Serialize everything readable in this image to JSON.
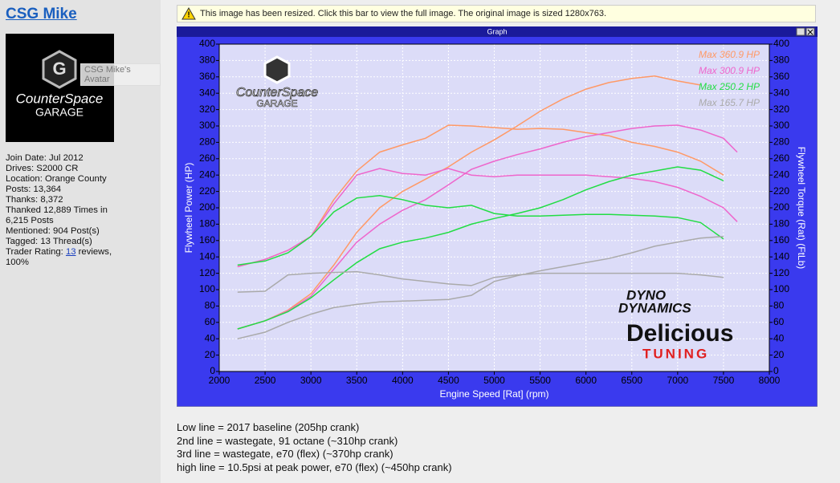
{
  "sidebar": {
    "username": "CSG Mike",
    "avatar_tooltip": "CSG Mike's Avatar",
    "avatar_logo": [
      "CounterSpace",
      "GARAGE"
    ],
    "info": [
      "Join Date: Jul 2012",
      "Drives: S2000 CR",
      "Location: Orange County",
      "Posts: 13,364",
      "Thanks: 8,372",
      "Thanked 12,889 Times in 6,215 Posts",
      "Mentioned: 904 Post(s)",
      "Tagged: 13 Thread(s)"
    ],
    "trader": {
      "label": "Trader Rating:",
      "link": "13",
      "suffix": "reviews, 100%"
    }
  },
  "notice": "This image has been resized. Click this bar to view the full image. The original image is sized 1280x763.",
  "window_title": "Graph",
  "chart_data": {
    "type": "line",
    "xlabel": "Engine Speed [Rat] (rpm)",
    "ylabel": "Flywheel Power (HP)",
    "y2label": "Flywheel Torque (Rat) (FtLb)",
    "x": [
      2200,
      2500,
      2750,
      3000,
      3250,
      3500,
      3750,
      4000,
      4250,
      4500,
      4750,
      5000,
      5250,
      5500,
      5750,
      6000,
      6250,
      6500,
      6750,
      7000,
      7250,
      7500,
      7650
    ],
    "xlim": [
      2000,
      8000
    ],
    "xticks": [
      2000,
      2500,
      3000,
      3500,
      4000,
      4500,
      5000,
      5500,
      6000,
      6500,
      7000,
      7500,
      8000
    ],
    "ylim": [
      0,
      400
    ],
    "yticks": [
      0,
      20,
      40,
      60,
      80,
      100,
      120,
      140,
      160,
      180,
      200,
      220,
      240,
      260,
      280,
      300,
      320,
      340,
      360,
      380,
      400
    ],
    "y2lim": [
      0,
      400
    ],
    "y2ticks": [
      0,
      20,
      40,
      60,
      80,
      100,
      120,
      140,
      160,
      180,
      200,
      220,
      240,
      260,
      280,
      300,
      320,
      340,
      360,
      380,
      400
    ],
    "grid": true,
    "legend": "top-right",
    "series": [
      {
        "name": "Max 360.9 HP",
        "color": "#ff9966",
        "values": [
          52,
          62,
          75,
          95,
          130,
          170,
          200,
          220,
          235,
          250,
          268,
          283,
          300,
          318,
          333,
          345,
          353,
          358,
          361,
          355,
          350,
          null,
          null
        ],
        "torque_values": [
          128,
          137,
          148,
          165,
          210,
          245,
          268,
          277,
          285,
          301,
          300,
          298,
          296,
          297,
          296,
          292,
          288,
          280,
          275,
          268,
          257,
          240,
          null
        ]
      },
      {
        "name": "Max 300.9 HP",
        "color": "#ee66cc",
        "values": [
          52,
          62,
          74,
          92,
          125,
          158,
          180,
          197,
          210,
          228,
          247,
          257,
          265,
          272,
          280,
          287,
          292,
          297,
          300,
          301,
          295,
          285,
          268
        ],
        "torque_values": [
          128,
          137,
          148,
          165,
          205,
          240,
          248,
          242,
          240,
          248,
          240,
          238,
          240,
          240,
          240,
          240,
          238,
          236,
          232,
          225,
          214,
          200,
          183
        ]
      },
      {
        "name": "Max 250.2 HP",
        "color": "#22dd44",
        "values": [
          52,
          62,
          73,
          90,
          112,
          133,
          150,
          158,
          163,
          170,
          180,
          187,
          193,
          200,
          210,
          222,
          232,
          240,
          245,
          250,
          246,
          233,
          null
        ],
        "torque_values": [
          130,
          135,
          145,
          165,
          195,
          212,
          215,
          210,
          203,
          200,
          203,
          193,
          190,
          190,
          191,
          192,
          192,
          191,
          190,
          188,
          182,
          162,
          null
        ]
      },
      {
        "name": "Max 165.7 HP",
        "color": "#aaaaaa",
        "values": [
          40,
          48,
          60,
          70,
          78,
          82,
          85,
          86,
          87,
          88,
          93,
          110,
          117,
          123,
          128,
          133,
          138,
          145,
          153,
          158,
          163,
          165,
          null
        ],
        "torque_values": [
          97,
          98,
          118,
          120,
          121,
          122,
          118,
          113,
          110,
          107,
          105,
          115,
          118,
          120,
          120,
          120,
          120,
          120,
          120,
          120,
          118,
          115,
          null
        ]
      }
    ],
    "watermarks": {
      "counterspace": [
        "CounterSpace",
        "GARAGE"
      ],
      "dyno": [
        "DYNO",
        "DYNAMICS"
      ],
      "delicious": [
        "Delicious",
        "TUNING"
      ]
    }
  },
  "notes": [
    "Low line = 2017 baseline (205hp crank)",
    "2nd line = wastegate, 91 octane (~310hp crank)",
    "3rd line = wastegate, e70 (flex) (~370hp crank)",
    "high line = 10.5psi at peak power, e70 (flex) (~450hp crank)"
  ]
}
